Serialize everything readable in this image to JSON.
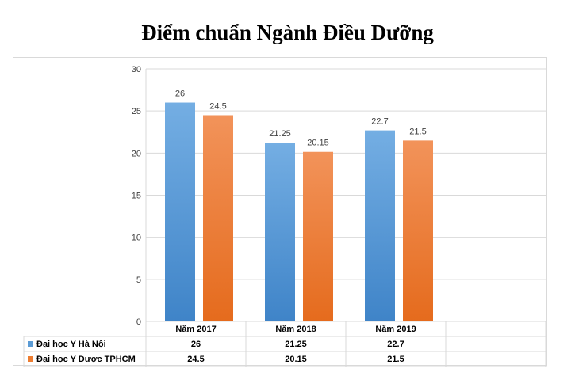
{
  "chart_data": {
    "type": "bar",
    "title": "Điểm chuẩn Ngành Điều Dưỡng",
    "categories": [
      "Năm 2017",
      "Năm 2018",
      "Năm 2019"
    ],
    "series": [
      {
        "name": "Đại học Y Hà Nội",
        "values": [
          26,
          21.25,
          22.7
        ],
        "labels": [
          "26",
          "21.25",
          "22.7"
        ],
        "color": "#5b9bd5"
      },
      {
        "name": "Đại học Y Dược TPHCM",
        "values": [
          24.5,
          20.15,
          21.5
        ],
        "labels": [
          "24.5",
          "20.15",
          "21.5"
        ],
        "color": "#ed7d31"
      }
    ],
    "yticks": [
      "0",
      "5",
      "10",
      "15",
      "20",
      "25",
      "30"
    ],
    "ylim": [
      0,
      30
    ],
    "grid": true,
    "legend": "data-table-left"
  }
}
